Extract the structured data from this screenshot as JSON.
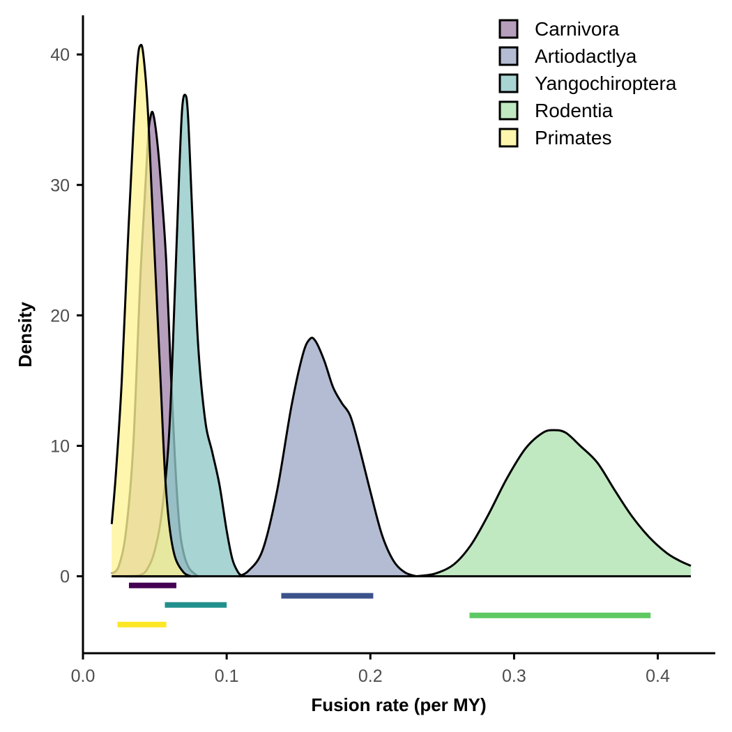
{
  "chart_data": {
    "type": "area",
    "xlabel": "Fusion rate (per MY)",
    "ylabel": "Density",
    "xlim": [
      0.0,
      0.44
    ],
    "ylim": [
      -5.9,
      43
    ],
    "x_ticks": [
      0.0,
      0.1,
      0.2,
      0.3,
      0.4
    ],
    "x_tick_labels": [
      "0.0",
      "0.1",
      "0.2",
      "0.3",
      "0.4"
    ],
    "y_ticks": [
      0,
      10,
      20,
      30,
      40
    ],
    "y_tick_labels": [
      "0",
      "10",
      "20",
      "30",
      "40"
    ],
    "grid": false,
    "legend_position": "top-right",
    "series": [
      {
        "name": "Carnivora",
        "color": "#440154",
        "fill": "#a283aa",
        "peak": 35.4,
        "interval": [
          0.032,
          0.065
        ],
        "interval_y": -0.7,
        "density": [
          [
            0.02,
            0.2
          ],
          [
            0.025,
            0.8
          ],
          [
            0.03,
            3.5
          ],
          [
            0.035,
            10.0
          ],
          [
            0.04,
            23.0
          ],
          [
            0.045,
            33.0
          ],
          [
            0.047,
            35.2
          ],
          [
            0.049,
            35.4
          ],
          [
            0.052,
            33.0
          ],
          [
            0.055,
            29.0
          ],
          [
            0.058,
            24.0
          ],
          [
            0.061,
            16.0
          ],
          [
            0.064,
            9.0
          ],
          [
            0.067,
            4.0
          ],
          [
            0.07,
            1.8
          ],
          [
            0.074,
            0.6
          ],
          [
            0.08,
            0.0
          ]
        ]
      },
      {
        "name": "Artiodactlya",
        "color": "#3b528b",
        "fill": "#9ea9c5",
        "peak": 18.3,
        "interval": [
          0.138,
          0.202
        ],
        "interval_y": -1.5,
        "density": [
          [
            0.108,
            0.0
          ],
          [
            0.115,
            0.4
          ],
          [
            0.125,
            2.0
          ],
          [
            0.135,
            6.5
          ],
          [
            0.145,
            13.0
          ],
          [
            0.153,
            17.0
          ],
          [
            0.158,
            18.2
          ],
          [
            0.162,
            18.0
          ],
          [
            0.168,
            16.5
          ],
          [
            0.174,
            14.5
          ],
          [
            0.18,
            13.3
          ],
          [
            0.186,
            12.3
          ],
          [
            0.192,
            10.0
          ],
          [
            0.2,
            6.5
          ],
          [
            0.208,
            3.2
          ],
          [
            0.216,
            1.2
          ],
          [
            0.224,
            0.3
          ],
          [
            0.232,
            0.0
          ]
        ]
      },
      {
        "name": "Yangochiroptera",
        "color": "#21908d",
        "fill": "#90c8c6",
        "peak": 36.9,
        "interval": [
          0.057,
          0.1
        ],
        "interval_y": -2.2,
        "density": [
          [
            0.03,
            0.0
          ],
          [
            0.04,
            0.1
          ],
          [
            0.045,
            0.6
          ],
          [
            0.05,
            2.0
          ],
          [
            0.055,
            5.0
          ],
          [
            0.06,
            11.0
          ],
          [
            0.064,
            22.0
          ],
          [
            0.067,
            31.0
          ],
          [
            0.069,
            35.8
          ],
          [
            0.071,
            36.9
          ],
          [
            0.073,
            35.5
          ],
          [
            0.076,
            28.0
          ],
          [
            0.08,
            18.0
          ],
          [
            0.085,
            12.0
          ],
          [
            0.09,
            9.5
          ],
          [
            0.095,
            7.0
          ],
          [
            0.1,
            3.5
          ],
          [
            0.104,
            1.3
          ],
          [
            0.108,
            0.3
          ],
          [
            0.111,
            0.0
          ]
        ]
      },
      {
        "name": "Rodentia",
        "color": "#5ec962",
        "fill": "#aee1b0",
        "peak": 11.2,
        "interval": [
          0.269,
          0.395
        ],
        "interval_y": -3.0,
        "density": [
          [
            0.232,
            0.0
          ],
          [
            0.245,
            0.2
          ],
          [
            0.258,
            0.9
          ],
          [
            0.27,
            2.4
          ],
          [
            0.282,
            4.7
          ],
          [
            0.295,
            7.5
          ],
          [
            0.308,
            9.8
          ],
          [
            0.32,
            11.0
          ],
          [
            0.328,
            11.2
          ],
          [
            0.336,
            11.0
          ],
          [
            0.346,
            10.0
          ],
          [
            0.358,
            8.7
          ],
          [
            0.37,
            6.6
          ],
          [
            0.382,
            4.6
          ],
          [
            0.394,
            3.0
          ],
          [
            0.406,
            1.8
          ],
          [
            0.415,
            1.2
          ],
          [
            0.423,
            0.8
          ]
        ]
      },
      {
        "name": "Primates",
        "color": "#fde725",
        "fill": "#fef396",
        "peak": 40.7,
        "interval": [
          0.024,
          0.058
        ],
        "interval_y": -3.7,
        "density": [
          [
            0.02,
            4.0
          ],
          [
            0.023,
            8.0
          ],
          [
            0.027,
            15.0
          ],
          [
            0.031,
            25.0
          ],
          [
            0.035,
            34.0
          ],
          [
            0.038,
            39.5
          ],
          [
            0.04,
            40.7
          ],
          [
            0.042,
            40.0
          ],
          [
            0.045,
            36.0
          ],
          [
            0.048,
            29.0
          ],
          [
            0.051,
            22.0
          ],
          [
            0.054,
            15.0
          ],
          [
            0.057,
            8.0
          ],
          [
            0.06,
            4.0
          ],
          [
            0.064,
            1.5
          ],
          [
            0.07,
            0.3
          ],
          [
            0.075,
            0.0
          ]
        ]
      }
    ]
  }
}
